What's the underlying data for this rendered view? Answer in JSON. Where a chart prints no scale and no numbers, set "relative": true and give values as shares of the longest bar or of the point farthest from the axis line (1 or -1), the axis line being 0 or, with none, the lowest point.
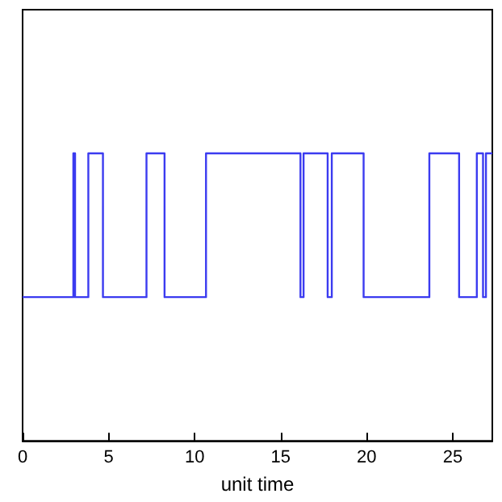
{
  "chart_data": {
    "type": "step",
    "relative": true,
    "xlabel": "unit time",
    "xlim": [
      0,
      27.3
    ],
    "xticks": [
      0,
      5,
      10,
      15,
      20,
      25
    ],
    "grid": false,
    "marker": "none",
    "line_style": "solid",
    "series": [
      {
        "color": "#3b3bf0",
        "x": [
          0,
          2.95,
          3.05,
          3.82,
          4.67,
          7.2,
          8.25,
          10.66,
          16.15,
          16.33,
          17.73,
          17.97,
          19.82,
          23.64,
          25.37,
          26.4,
          26.76,
          26.93,
          27.3
        ],
        "values": [
          0.5,
          1,
          0.5,
          1,
          0.5,
          1,
          0.5,
          1,
          0.5,
          1,
          0.5,
          1,
          0.5,
          1,
          0.5,
          1,
          0.5,
          1,
          1
        ]
      }
    ]
  }
}
